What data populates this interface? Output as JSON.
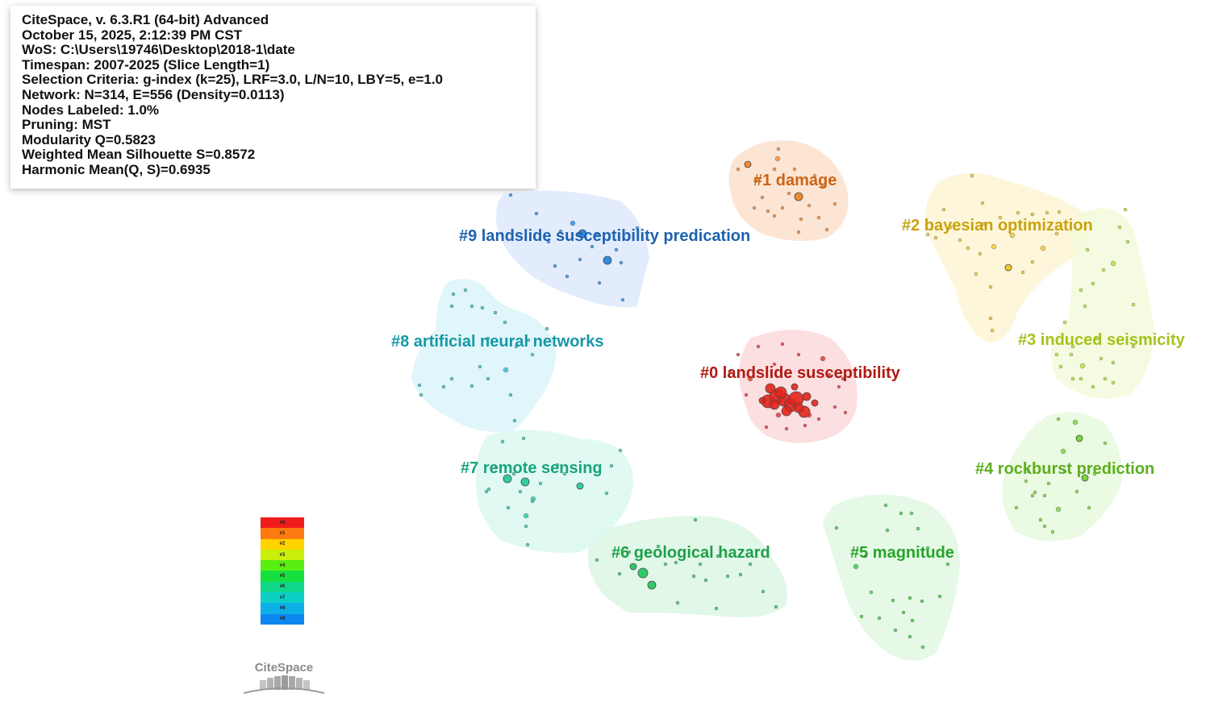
{
  "info": [
    "CiteSpace, v. 6.3.R1 (64-bit) Advanced",
    "October 15, 2025, 2:12:39 PM CST",
    "WoS: C:\\Users\\19746\\Desktop\\2018-1\\date",
    "Timespan: 2007-2025 (Slice Length=1)",
    "Selection Criteria: g-index (k=25), LRF=3.0, L/N=10, LBY=5, e=1.0",
    "Network: N=314, E=556 (Density=0.0113)",
    "Nodes Labeled: 1.0%",
    "Pruning: MST",
    "Modularity Q=0.5823",
    "Weighted Mean Silhouette S=0.8572",
    "Harmonic Mean(Q, S)=0.6935"
  ],
  "clusters": [
    {
      "id": "#0",
      "label": "#0 landslide susceptibility",
      "color": "#e3241b",
      "text_color": "#b01a12",
      "fill": "#fbd9dc"
    },
    {
      "id": "#1",
      "label": "#1 damage",
      "color": "#f07f22",
      "text_color": "#cc6414",
      "fill": "#fde0cc"
    },
    {
      "id": "#2",
      "label": "#2 bayesian optimization",
      "color": "#f2c318",
      "text_color": "#c9a20c",
      "fill": "#fdf5d4"
    },
    {
      "id": "#3",
      "label": "#3 induced seismicity",
      "color": "#b6e21c",
      "text_color": "#a4c21a",
      "fill": "#f3fadb"
    },
    {
      "id": "#4",
      "label": "#4 rockburst prediction",
      "color": "#6ad32a",
      "text_color": "#5cae1e",
      "fill": "#e8f9dd"
    },
    {
      "id": "#5",
      "label": "#5 magnitude",
      "color": "#2fc832",
      "text_color": "#28a428",
      "fill": "#e0f8e2"
    },
    {
      "id": "#6",
      "label": "#6 geological hazard",
      "color": "#1fc35a",
      "text_color": "#1d9f48",
      "fill": "#dcf6e4"
    },
    {
      "id": "#7",
      "label": "#7 remote sensing",
      "color": "#1fc79a",
      "text_color": "#18a47c",
      "fill": "#dbf8f1"
    },
    {
      "id": "#8",
      "label": "#8 artificial neural networks",
      "color": "#1fb8cc",
      "text_color": "#1698a8",
      "fill": "#dcf4f9"
    },
    {
      "id": "#9",
      "label": "#9 landslide susceptibility predication",
      "color": "#1e7fdc",
      "text_color": "#1d62b0",
      "fill": "#dde9fb"
    }
  ],
  "legend": [
    "#0",
    "#1",
    "#2",
    "#3",
    "#4",
    "#5",
    "#6",
    "#7",
    "#8",
    "#9"
  ],
  "legend_colors": [
    "#ee1c1c",
    "#ff7a10",
    "#ffd200",
    "#c8f00a",
    "#5aef12",
    "#16e040",
    "#10d88a",
    "#0ccfc4",
    "#0cb0e6",
    "#0c86f0"
  ],
  "logo": "CiteSpace"
}
